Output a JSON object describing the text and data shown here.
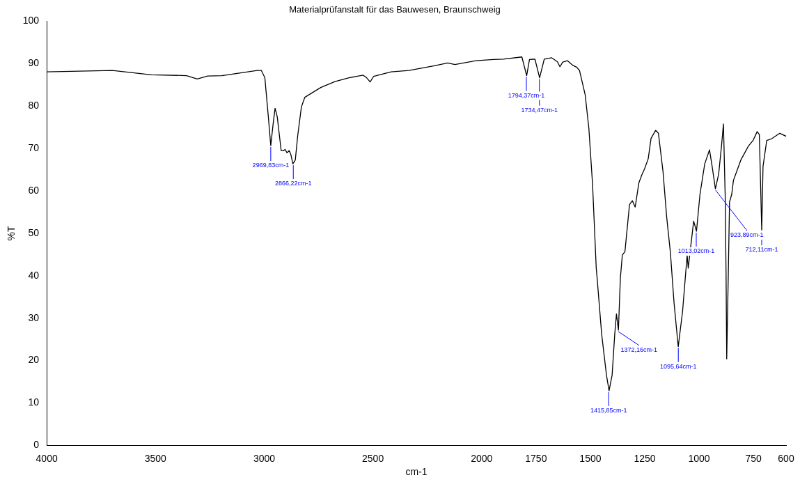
{
  "chart_data": {
    "type": "line",
    "title": "Materialprüfanstalt für das Bauwesen, Braunschweig",
    "xlabel": "cm-1",
    "ylabel": "%T",
    "x": [
      4000,
      3698,
      3519,
      3357,
      3308,
      3260,
      3195,
      3032,
      3013,
      2997,
      2981,
      2969.8,
      2959,
      2950,
      2940,
      2922,
      2911,
      2904,
      2895,
      2885,
      2878,
      2868,
      2857,
      2846,
      2829,
      2813,
      2740,
      2675,
      2610,
      2545,
      2529,
      2513,
      2497,
      2416,
      2334,
      2221,
      2156,
      2123,
      2026,
      1946,
      1900,
      1815,
      1793,
      1780,
      1755,
      1733.5,
      1712,
      1678,
      1652,
      1640,
      1627,
      1605,
      1580,
      1563,
      1550,
      1524,
      1507,
      1490,
      1473,
      1469,
      1448,
      1426,
      1414,
      1400,
      1388,
      1380,
      1371,
      1362,
      1353,
      1341,
      1320,
      1307,
      1294,
      1277,
      1264,
      1251,
      1234,
      1221,
      1200,
      1187,
      1166,
      1149,
      1132,
      1115,
      1096,
      1076,
      1055,
      1050,
      1025,
      1012,
      996,
      974,
      952,
      940,
      925,
      910,
      897,
      888,
      880,
      876,
      873,
      866,
      860,
      850,
      842,
      808,
      773,
      752,
      733,
      723,
      712,
      706,
      689,
      667,
      629,
      600
    ],
    "series": [
      {
        "color": "#000000",
        "values": [
          88.1,
          88.4,
          87.4,
          87.2,
          86.4,
          87.1,
          87.2,
          88.4,
          88.4,
          86.7,
          77.5,
          70.7,
          75.8,
          79.5,
          77.5,
          69.5,
          69.5,
          69.8,
          69,
          69.5,
          68.7,
          66.4,
          67.3,
          73,
          79.8,
          82.1,
          84.4,
          85.8,
          86.7,
          87.3,
          86.7,
          85.7,
          87,
          88.1,
          88.4,
          89.5,
          90.2,
          89.8,
          90.7,
          91,
          91.1,
          91.6,
          87.2,
          91,
          91.1,
          86.7,
          91.1,
          91.4,
          90.5,
          89.3,
          90.4,
          90.7,
          89.6,
          89.2,
          88.4,
          82.7,
          74.8,
          61.6,
          41.8,
          39.5,
          26.2,
          16.6,
          12.9,
          16.6,
          26.2,
          31,
          27.2,
          39.5,
          44.9,
          45.7,
          56.8,
          57.7,
          56.2,
          61.9,
          63.7,
          65.2,
          67.6,
          72.4,
          74.3,
          73.6,
          64.6,
          53.8,
          45.5,
          33.5,
          23.3,
          31.6,
          44.9,
          41.8,
          52.9,
          50.5,
          59.2,
          66.4,
          69.7,
          65.8,
          60.5,
          64,
          70.6,
          75.8,
          58.7,
          40.6,
          20.4,
          39.5,
          57.4,
          59.2,
          62.5,
          67.3,
          70.6,
          71.9,
          74,
          73.3,
          50.8,
          65.8,
          71.9,
          72.3,
          73.6,
          72.9
        ]
      }
    ],
    "xlim": [
      4000,
      600
    ],
    "xticks": [
      4000,
      3500,
      3000,
      2500,
      2000,
      1750,
      1500,
      1250,
      1000,
      750,
      600
    ],
    "ylim": [
      0,
      100
    ],
    "yticks": [
      0,
      10,
      20,
      30,
      40,
      50,
      60,
      70,
      80,
      90,
      100
    ],
    "grid": false,
    "legend": false,
    "marker": "none",
    "line_style": "solid",
    "annotations": [
      {
        "text": "2969,83cm-1",
        "x": 2969.83,
        "y": 70.7
      },
      {
        "text": "2866,22cm-1",
        "x": 2866.22,
        "y": 66.4
      },
      {
        "text": "1794,37cm-1",
        "x": 1794.37,
        "y": 87.2
      },
      {
        "text": "1734,47cm-1",
        "x": 1734.47,
        "y": 86.7
      },
      {
        "text": "1415,85cm-1",
        "x": 1415.85,
        "y": 12.9
      },
      {
        "text": "1372,16cm-1",
        "x": 1372.16,
        "y": 27.2
      },
      {
        "text": "1095,64cm-1",
        "x": 1095.64,
        "y": 23.3
      },
      {
        "text": "1013,02cm-1",
        "x": 1013.02,
        "y": 50.5
      },
      {
        "text": "923,89cm-1",
        "x": 923.89,
        "y": 60.5
      },
      {
        "text": "712,11cm-1",
        "x": 712.11,
        "y": 50.8
      }
    ]
  }
}
